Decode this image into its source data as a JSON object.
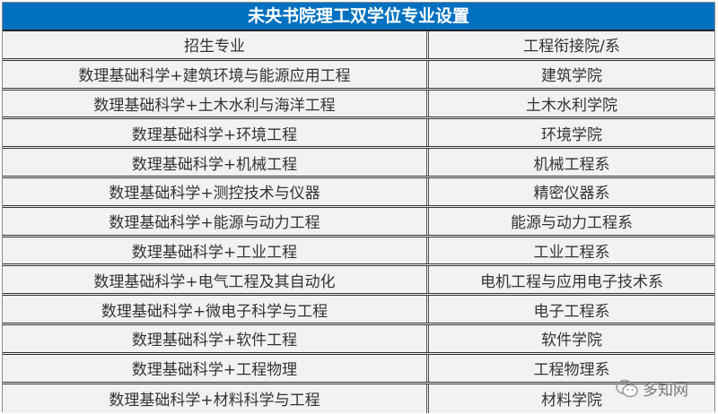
{
  "title": "未央书院理工双学位专业设置",
  "headers": [
    "招生专业",
    "工程衔接院/系"
  ],
  "rows": [
    [
      "数理基础科学+建筑环境与能源应用工程",
      "建筑学院"
    ],
    [
      "数理基础科学+土木水利与海洋工程",
      "土木水利学院"
    ],
    [
      "数理基础科学+环境工程",
      "环境学院"
    ],
    [
      "数理基础科学+机械工程",
      "机械工程系"
    ],
    [
      "数理基础科学+测控技术与仪器",
      "精密仪器系"
    ],
    [
      "数理基础科学+能源与动力工程",
      "能源与动力工程系"
    ],
    [
      "数理基础科学+工业工程",
      "工业工程系"
    ],
    [
      "数理基础科学+电气工程及其自动化",
      "电机工程与应用电子技术系"
    ],
    [
      "数理基础科学+微电子科学与工程",
      "电子工程系"
    ],
    [
      "数理基础科学+软件工程",
      "软件学院"
    ],
    [
      "数理基础科学+工程物理",
      "工程物理系"
    ],
    [
      "数理基础科学+材料科学与工程",
      "材料学院"
    ]
  ],
  "watermark": {
    "text": "多知网",
    "icon": "wechat-icon"
  },
  "colors": {
    "title_bg": "#0070c0",
    "cell_bg": "#f2f2f2"
  }
}
